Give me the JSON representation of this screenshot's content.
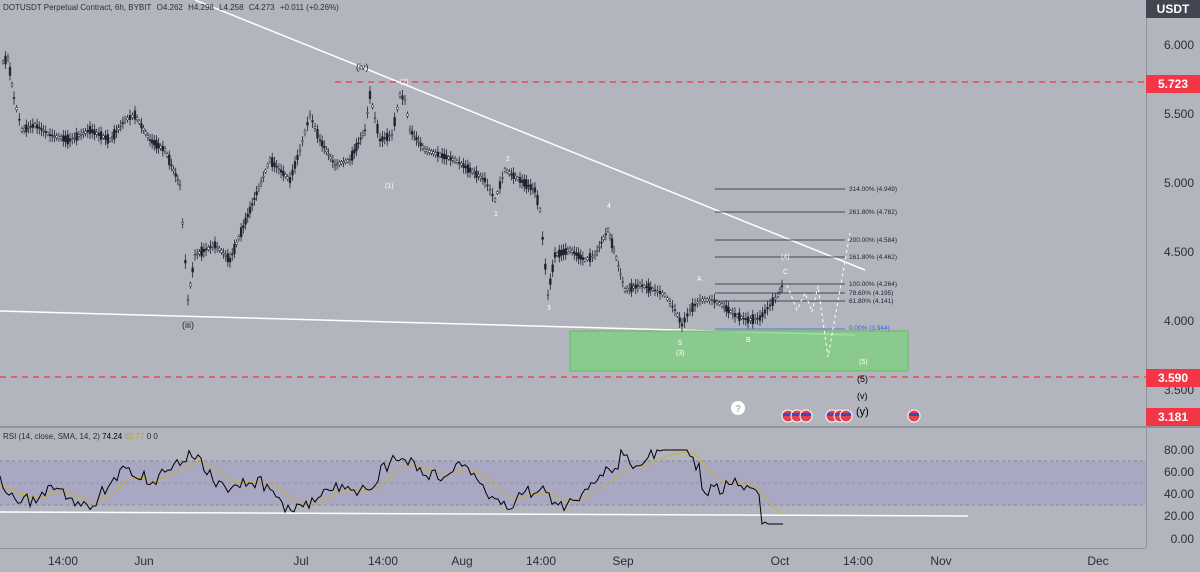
{
  "legend": {
    "symbol": "DOTUSDT Perpetual Contract, 6h, BYBIT",
    "open": "O4.262",
    "high": "H4.298",
    "low": "L4.258",
    "close": "C4.273",
    "change": "+0.011 (+0.26%)"
  },
  "rsi_legend": {
    "label": "RSI (14, close, SMA, 14, 2)",
    "v1": "74.24",
    "v2": "62.77",
    "v3": "0",
    "v4": "0"
  },
  "price_axis": {
    "currency": "USDT",
    "ticks": [
      "6.000",
      "5.500",
      "5.000",
      "4.500",
      "4.000",
      "3.500"
    ],
    "badges": [
      "5.723",
      "3.590",
      "3.181"
    ]
  },
  "rsi_axis": {
    "ticks": [
      "80.00",
      "60.00",
      "40.00",
      "20.00",
      "0.00"
    ]
  },
  "time_axis": {
    "ticks": [
      "14:00",
      "Jun",
      "Jul",
      "14:00",
      "Aug",
      "14:00",
      "Sep",
      "Oct",
      "14:00",
      "Nov",
      "Dec"
    ]
  },
  "wave_labels": {
    "iv": "(iv)",
    "two_c": "(2)",
    "iii": "(iii)",
    "one_c": "(1)",
    "two": "2",
    "one": "1",
    "four": "4",
    "three": "3",
    "A": "A",
    "C": "C",
    "four_c": "(4)",
    "five": "5",
    "three_c": "(3)",
    "B": "B",
    "five_c": "(5)",
    "five_b": "(5)",
    "v": "(v)",
    "y": "(y)"
  },
  "fib_labels": [
    "314.00% (4.949)",
    "261.80% (4.782)",
    "200.00% (4.584)",
    "161.80% (4.462)",
    "100.00% (4.264)",
    "78.60% (4.195)",
    "61.80% (4.141)",
    "0.00% (3.944)"
  ],
  "question_mark": "?",
  "colors": {
    "background": "#b2b5be",
    "candle": "#1e222d",
    "resistance_red": "#f23645",
    "support_zone": "#7ed17e",
    "rsi_band": "#9d98c8",
    "rsi_ma": "#c8b03a"
  },
  "icons": [
    "us-flag-event-icon",
    "question-event-icon"
  ]
}
